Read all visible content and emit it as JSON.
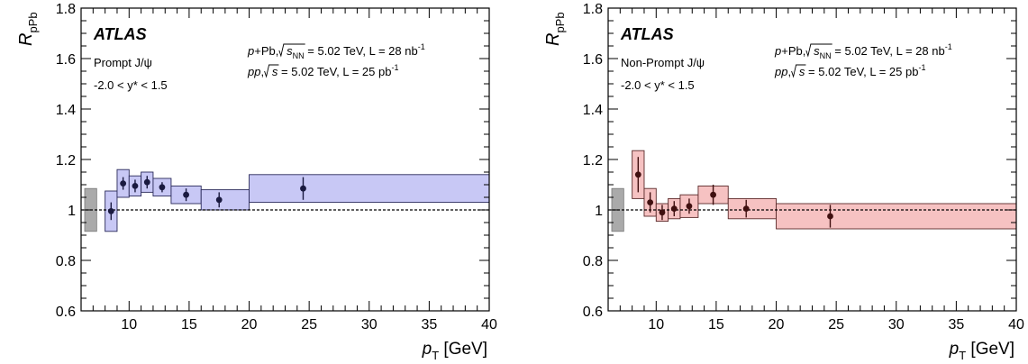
{
  "chart_data": [
    {
      "type": "scatter",
      "experiment": "ATLAS",
      "annotations": {
        "collision_line1": {
          "p1": "p",
          "p2": "+Pb, ",
          "sqrt": "s",
          "sub": "NN",
          "rest": " = 5.02 TeV, L = 28 nb",
          "sup": "-1"
        },
        "collision_line2": {
          "p1": "pp",
          "p2": ", ",
          "sqrt": "s",
          "rest": " = 5.02 TeV, L = 25 pb",
          "sup": "-1"
        },
        "species": "Prompt J/ψ",
        "rapidity": "-2.0 < y* < 1.5"
      },
      "ylabel": {
        "main": "R",
        "sub": "pPb"
      },
      "xlabel": {
        "main": "p",
        "sub": "T",
        "unit": " [GeV]"
      },
      "xlim": [
        6,
        40
      ],
      "ylim": [
        0.6,
        1.8
      ],
      "xticks": [
        10,
        15,
        20,
        25,
        30,
        35,
        40
      ],
      "yticks": [
        0.6,
        0.8,
        1,
        1.2,
        1.4,
        1.6,
        1.8
      ],
      "reference_line": 1,
      "global_uncertainty": {
        "x": [
          6.3,
          7.3
        ],
        "y": [
          0.915,
          1.085
        ],
        "color": "#aaaaaa"
      },
      "colors": {
        "box_fill": "#c8c8f5",
        "box_stroke": "#2a2a5a",
        "marker": "#1a1a40"
      },
      "points": [
        {
          "x": 8.5,
          "y": 0.995,
          "xlo": 8,
          "xhi": 9,
          "sys": 0.08,
          "stat": 0.035
        },
        {
          "x": 9.5,
          "y": 1.105,
          "xlo": 9,
          "xhi": 10,
          "sys": 0.055,
          "stat": 0.025
        },
        {
          "x": 10.5,
          "y": 1.095,
          "xlo": 10,
          "xhi": 11,
          "sys": 0.04,
          "stat": 0.025
        },
        {
          "x": 11.5,
          "y": 1.11,
          "xlo": 11,
          "xhi": 12,
          "sys": 0.04,
          "stat": 0.025
        },
        {
          "x": 12.75,
          "y": 1.09,
          "xlo": 12,
          "xhi": 13.5,
          "sys": 0.035,
          "stat": 0.02
        },
        {
          "x": 14.75,
          "y": 1.06,
          "xlo": 13.5,
          "xhi": 16,
          "sys": 0.035,
          "stat": 0.025
        },
        {
          "x": 17.5,
          "y": 1.04,
          "xlo": 16,
          "xhi": 20,
          "sys": 0.04,
          "stat": 0.03
        },
        {
          "x": 24.5,
          "y": 1.085,
          "xlo": 20,
          "xhi": 40,
          "sys": 0.055,
          "stat": 0.045
        }
      ]
    },
    {
      "type": "scatter",
      "experiment": "ATLAS",
      "annotations": {
        "collision_line1": {
          "p1": "p",
          "p2": "+Pb, ",
          "sqrt": "s",
          "sub": "NN",
          "rest": " = 5.02 TeV, L = 28 nb",
          "sup": "-1"
        },
        "collision_line2": {
          "p1": "pp",
          "p2": ", ",
          "sqrt": "s",
          "rest": " = 5.02 TeV, L = 25 pb",
          "sup": "-1"
        },
        "species": "Non-Prompt J/ψ",
        "rapidity": "-2.0 < y* < 1.5"
      },
      "ylabel": {
        "main": "R",
        "sub": "pPb"
      },
      "xlabel": {
        "main": "p",
        "sub": "T",
        "unit": " [GeV]"
      },
      "xlim": [
        6,
        40
      ],
      "ylim": [
        0.6,
        1.8
      ],
      "xticks": [
        10,
        15,
        20,
        25,
        30,
        35,
        40
      ],
      "yticks": [
        0.6,
        0.8,
        1,
        1.2,
        1.4,
        1.6,
        1.8
      ],
      "reference_line": 1,
      "global_uncertainty": {
        "x": [
          6.3,
          7.3
        ],
        "y": [
          0.915,
          1.085
        ],
        "color": "#aaaaaa"
      },
      "colors": {
        "box_fill": "#f6c2c2",
        "box_stroke": "#5a2a2a",
        "marker": "#401010"
      },
      "points": [
        {
          "x": 8.5,
          "y": 1.14,
          "xlo": 8,
          "xhi": 9,
          "sys": 0.095,
          "stat": 0.07
        },
        {
          "x": 9.5,
          "y": 1.03,
          "xlo": 9,
          "xhi": 10,
          "sys": 0.055,
          "stat": 0.04
        },
        {
          "x": 10.5,
          "y": 0.99,
          "xlo": 10,
          "xhi": 11,
          "sys": 0.035,
          "stat": 0.03
        },
        {
          "x": 11.5,
          "y": 1.005,
          "xlo": 11,
          "xhi": 12,
          "sys": 0.04,
          "stat": 0.03
        },
        {
          "x": 12.75,
          "y": 1.015,
          "xlo": 12,
          "xhi": 13.5,
          "sys": 0.045,
          "stat": 0.03
        },
        {
          "x": 14.75,
          "y": 1.06,
          "xlo": 13.5,
          "xhi": 16,
          "sys": 0.035,
          "stat": 0.04
        },
        {
          "x": 17.5,
          "y": 1.005,
          "xlo": 16,
          "xhi": 20,
          "sys": 0.04,
          "stat": 0.035
        },
        {
          "x": 24.5,
          "y": 0.975,
          "xlo": 20,
          "xhi": 40,
          "sys": 0.05,
          "stat": 0.045
        }
      ]
    }
  ]
}
